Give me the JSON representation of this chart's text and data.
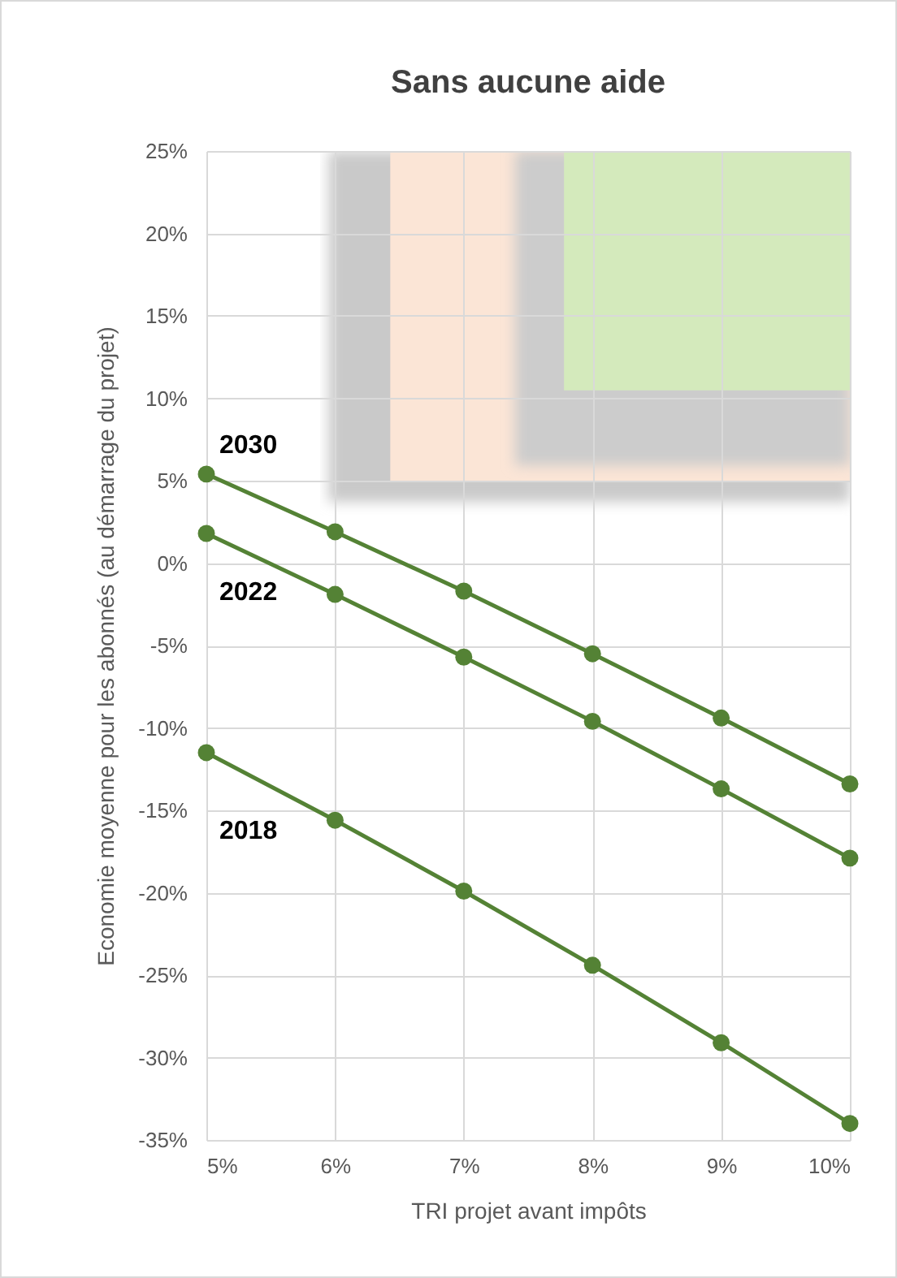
{
  "chart_data": {
    "type": "line",
    "title": "Sans aucune aide",
    "xlabel": "TRI projet avant impôts",
    "ylabel": "Economie moyenne pour les abonnés (au démarrage du projet)",
    "x": [
      5,
      6,
      7,
      8,
      9,
      10
    ],
    "series": [
      {
        "name": "2030",
        "color": "#548235",
        "values": [
          5.4,
          1.9,
          -1.7,
          -5.5,
          -9.4,
          -13.4
        ]
      },
      {
        "name": "2022",
        "color": "#548235",
        "values": [
          1.8,
          -1.9,
          -5.7,
          -9.6,
          -13.7,
          -17.9
        ]
      },
      {
        "name": "2018",
        "color": "#548235",
        "values": [
          -11.5,
          -15.6,
          -19.9,
          -24.4,
          -29.1,
          -34
        ]
      }
    ],
    "xlim": [
      5,
      10
    ],
    "xticks": [
      {
        "value": 5,
        "label": "5%"
      },
      {
        "value": 6,
        "label": "6%"
      },
      {
        "value": 7,
        "label": "7%"
      },
      {
        "value": 8,
        "label": "8%"
      },
      {
        "value": 9,
        "label": "9%"
      },
      {
        "value": 10,
        "label": "10%"
      }
    ],
    "ylim": [
      -35,
      25
    ],
    "yticks": [
      {
        "value": -35,
        "label": "-35%"
      },
      {
        "value": -30,
        "label": "-30%"
      },
      {
        "value": -25,
        "label": "-25%"
      },
      {
        "value": -20,
        "label": "-20%"
      },
      {
        "value": -15,
        "label": "-15%"
      },
      {
        "value": -10,
        "label": "-10%"
      },
      {
        "value": -5,
        "label": "-5%"
      },
      {
        "value": 0,
        "label": "0%"
      },
      {
        "value": 5,
        "label": "5%"
      },
      {
        "value": 10,
        "label": "10%"
      },
      {
        "value": 15,
        "label": "15%"
      },
      {
        "value": 20,
        "label": "20%"
      },
      {
        "value": 25,
        "label": "25%"
      }
    ],
    "grid": true,
    "marker": "circle",
    "legend": false,
    "line_style": "solid"
  }
}
